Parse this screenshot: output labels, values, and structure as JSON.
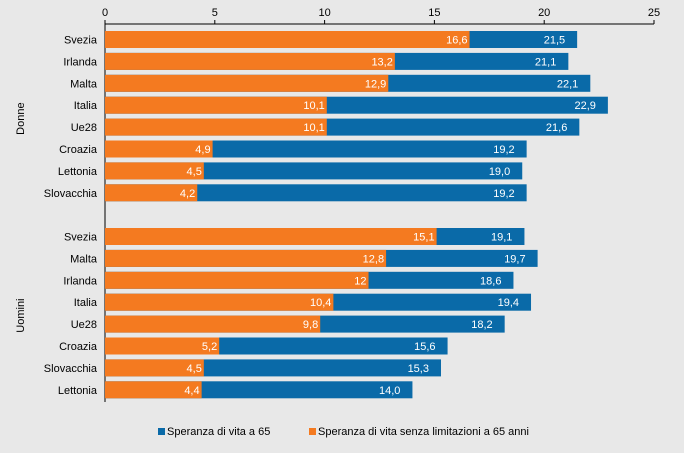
{
  "chart_data": {
    "type": "bar",
    "orientation": "horizontal",
    "stacking": "overlay",
    "xlim": [
      0,
      25
    ],
    "xticks": [
      "0",
      "5",
      "10",
      "15",
      "20",
      "25"
    ],
    "grid": false,
    "legend_position": "bottom",
    "colors": {
      "total": "#0a6aa8",
      "healthy": "#f47a20",
      "background": "#e8e8e8"
    },
    "groups": [
      {
        "name": "Donne",
        "categories": [
          "Svezia",
          "Irlanda",
          "Malta",
          "Italia",
          "Ue28",
          "Croazia",
          "Lettonia",
          "Slovacchia"
        ],
        "total": [
          21.5,
          21.1,
          22.1,
          22.9,
          21.6,
          19.2,
          19.0,
          19.2
        ],
        "total_labels": [
          "21,5",
          "21,1",
          "22,1",
          "22,9",
          "21,6",
          "19,2",
          "19,0",
          "19,2"
        ],
        "healthy": [
          16.6,
          13.2,
          12.9,
          10.1,
          10.1,
          4.9,
          4.5,
          4.2
        ],
        "healthy_labels": [
          "16,6",
          "13,2",
          "12,9",
          "10,1",
          "10,1",
          "4,9",
          "4,5",
          "4,2"
        ]
      },
      {
        "name": "Uomini",
        "categories": [
          "Svezia",
          "Malta",
          "Irlanda",
          "Italia",
          "Ue28",
          "Croazia",
          "Slovacchia",
          "Lettonia"
        ],
        "total": [
          19.1,
          19.7,
          18.6,
          19.4,
          18.2,
          15.6,
          15.3,
          14.0
        ],
        "total_labels": [
          "19,1",
          "19,7",
          "18,6",
          "19,4",
          "18,2",
          "15,6",
          "15,3",
          "14,0"
        ],
        "healthy": [
          15.1,
          12.8,
          12,
          10.4,
          9.8,
          5.2,
          4.5,
          4.4
        ],
        "healthy_labels": [
          "15,1",
          "12,8",
          "12",
          "10,4",
          "9,8",
          "5,2",
          "4,5",
          "4,4"
        ]
      }
    ],
    "series": [
      {
        "name": "Speranza di vita a 65",
        "key": "total"
      },
      {
        "name": "Speranza di vita senza limitazioni a 65 anni",
        "key": "healthy"
      }
    ]
  }
}
